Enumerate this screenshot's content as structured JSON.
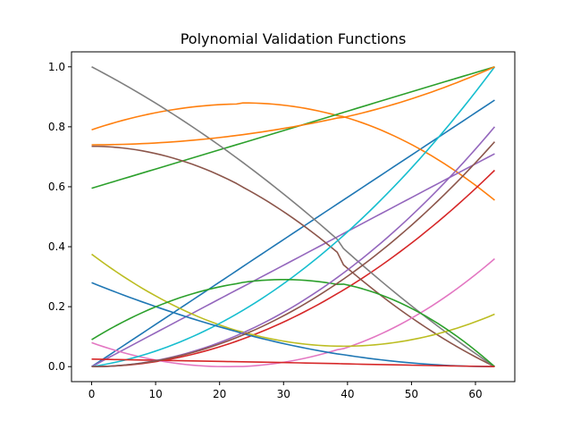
{
  "chart_data": {
    "type": "line",
    "title": "Polynomial Validation Functions",
    "xlabel": "",
    "ylabel": "",
    "xlim": [
      -3.15,
      66.15
    ],
    "ylim": [
      -0.05,
      1.05
    ],
    "xticks": [
      0,
      10,
      20,
      30,
      40,
      50,
      60
    ],
    "yticks": [
      0.0,
      0.2,
      0.4,
      0.6,
      0.8,
      1.0
    ],
    "xtick_labels": [
      "0",
      "10",
      "20",
      "30",
      "40",
      "50",
      "60"
    ],
    "ytick_labels": [
      "0.0",
      "0.2",
      "0.4",
      "0.6",
      "0.8",
      "1.0"
    ],
    "grid": false,
    "legend": "none",
    "series": [
      {
        "color": "#1f77b4",
        "x": [
          0,
          15.75,
          31.5,
          47.25,
          63
        ],
        "y": [
          0.0,
          0.222,
          0.445,
          0.667,
          0.889
        ]
      },
      {
        "color": "#ff7f0e",
        "x": [
          0,
          15.75,
          31.5,
          47.25,
          63
        ],
        "y": [
          0.79,
          0.866,
          0.868,
          0.77,
          0.555
        ]
      },
      {
        "color": "#2ca02c",
        "x": [
          0,
          15.75,
          31.5,
          47.25,
          63
        ],
        "y": [
          0.595,
          0.696,
          0.797,
          0.899,
          1.0
        ]
      },
      {
        "color": "#d62728",
        "x": [
          0,
          15.75,
          31.5,
          47.25,
          63
        ],
        "y": [
          0.0,
          0.041,
          0.164,
          0.368,
          0.655
        ]
      },
      {
        "color": "#9467bd",
        "x": [
          0,
          15.75,
          31.5,
          47.25,
          63
        ],
        "y": [
          0.0,
          0.178,
          0.355,
          0.533,
          0.71
        ]
      },
      {
        "color": "#8c564b",
        "x": [
          0,
          15.75,
          31.5,
          47.25,
          63
        ],
        "y": [
          0.735,
          0.675,
          0.495,
          0.205,
          0.0
        ]
      },
      {
        "color": "#e377c2",
        "x": [
          0,
          15.75,
          31.5,
          47.25,
          63
        ],
        "y": [
          0.08,
          0.005,
          0.02,
          0.13,
          0.36
        ]
      },
      {
        "color": "#7f7f7f",
        "x": [
          0,
          15.75,
          31.5,
          47.25,
          63
        ],
        "y": [
          1.0,
          0.8,
          0.55,
          0.25,
          0.0
        ]
      },
      {
        "color": "#bcbd22",
        "x": [
          0,
          15.75,
          31.5,
          47.25,
          63
        ],
        "y": [
          0.375,
          0.175,
          0.08,
          0.08,
          0.175
        ]
      },
      {
        "color": "#17becf",
        "x": [
          0,
          15.75,
          31.5,
          47.25,
          63
        ],
        "y": [
          0.0,
          0.1,
          0.3,
          0.6,
          1.0
        ]
      },
      {
        "color": "#1f77b4",
        "x": [
          0,
          15.75,
          31.5,
          47.25,
          63
        ],
        "y": [
          0.28,
          0.16,
          0.07,
          0.018,
          0.0
        ]
      },
      {
        "color": "#ff7f0e",
        "x": [
          0,
          15.75,
          31.5,
          47.25,
          63
        ],
        "y": [
          0.74,
          0.755,
          0.8,
          0.875,
          1.0
        ]
      },
      {
        "color": "#2ca02c",
        "x": [
          0,
          15.75,
          31.5,
          47.25,
          63
        ],
        "y": [
          0.09,
          0.243,
          0.29,
          0.222,
          0.0
        ]
      },
      {
        "color": "#d62728",
        "x": [
          0,
          15.75,
          31.5,
          47.25,
          63
        ],
        "y": [
          0.025,
          0.019,
          0.013,
          0.006,
          0.0
        ]
      },
      {
        "color": "#9467bd",
        "x": [
          0,
          15.75,
          31.5,
          47.25,
          63
        ],
        "y": [
          0.0,
          0.05,
          0.2,
          0.45,
          0.8
        ]
      },
      {
        "color": "#8c564b",
        "x": [
          0,
          15.75,
          31.5,
          47.25,
          63
        ],
        "y": [
          0.0,
          0.047,
          0.187,
          0.421,
          0.75
        ]
      }
    ]
  }
}
